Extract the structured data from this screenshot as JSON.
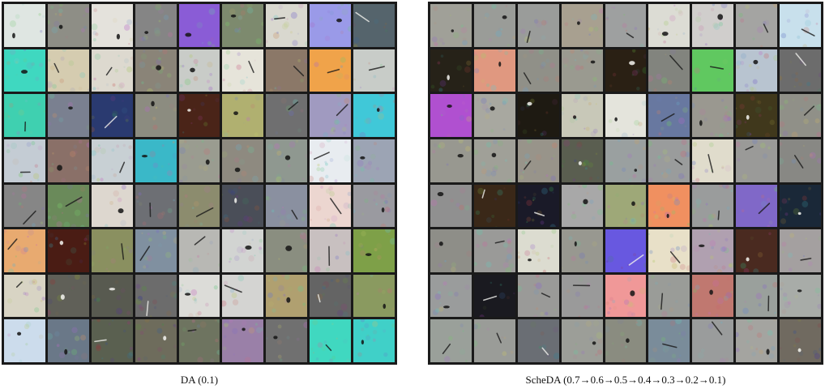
{
  "captions": {
    "left": "DA (0.1)",
    "right": "ScheDA (0.7→0.6→0.5→0.4→0.3→0.2→0.1)"
  },
  "grids": {
    "left": {
      "rows": 8,
      "cols": 9,
      "tiles": [
        [
          "#dfe6e2",
          "#8e8e86",
          "#e4e2dc",
          "#858585",
          "#8a5cd6",
          "#7d8a6e",
          "#d9d8cf",
          "#9a9ae8",
          "#55646c"
        ],
        [
          "#3fd8c0",
          "#d5ccb0",
          "#ddd9cf",
          "#8a8478",
          "#c9ccc8",
          "#e6e4da",
          "#8b7868",
          "#f0a34a",
          "#c8ccc8"
        ],
        [
          "#3fd0b0",
          "#7a8090",
          "#2a3a70",
          "#8c8c80",
          "#4a2418",
          "#b0b070",
          "#6f6f70",
          "#a09ac0",
          "#40c8d8"
        ],
        [
          "#c4ccd4",
          "#8a7068",
          "#c8d0d4",
          "#3ab8c8",
          "#9a9c90",
          "#8e8a80",
          "#8f9890",
          "#e8ecf0",
          "#9ca4b4"
        ],
        [
          "#868686",
          "#6a8a5a",
          "#ddd7cf",
          "#6d6f74",
          "#8c8c6e",
          "#4a4e58",
          "#8a90a0",
          "#ecd6d0",
          "#9a9aa0"
        ],
        [
          "#e8aa70",
          "#4a1c14",
          "#8a9060",
          "#8090a0",
          "#b8b8b4",
          "#d2d4d2",
          "#8a8e80",
          "#c8c0c0",
          "#7ea048"
        ],
        [
          "#d8d4c4",
          "#606058",
          "#585a50",
          "#6c6c6c",
          "#dcdcd8",
          "#d4d4d2",
          "#b0a070",
          "#646464",
          "#8a9a60"
        ],
        [
          "#ccdcec",
          "#6a7888",
          "#5a6050",
          "#6e6c5c",
          "#6e7460",
          "#9a80a8",
          "#707070",
          "#40d8c0",
          "#40d0c8"
        ]
      ]
    },
    "right": {
      "rows": 8,
      "cols": 9,
      "tiles": [
        [
          "#a0a098",
          "#9a9c98",
          "#9a9c9a",
          "#a8a090",
          "#9ea0a0",
          "#dcdcd4",
          "#d0cecc",
          "#a4a4a2",
          "#c8e0ec"
        ],
        [
          "#262218",
          "#e09880",
          "#909088",
          "#9a9a90",
          "#2a2014",
          "#82847e",
          "#60c860",
          "#b8c4d0",
          "#6c6c6c"
        ],
        [
          "#b050d0",
          "#a8a8a0",
          "#1e1a12",
          "#c8c8b8",
          "#e4e4dc",
          "#6878a0",
          "#9a9890",
          "#40381c",
          "#909088"
        ],
        [
          "#989890",
          "#a0a098",
          "#98948a",
          "#5a5e50",
          "#9aa0a0",
          "#9a9c9c",
          "#e0dccc",
          "#9a9a98",
          "#888884"
        ],
        [
          "#909090",
          "#3a2818",
          "#1a1a28",
          "#a8a8a8",
          "#9ea878",
          "#f09060",
          "#9a9c9c",
          "#8068c8",
          "#1a2838"
        ],
        [
          "#8e8e88",
          "#9a9a98",
          "#dcdcd0",
          "#989890",
          "#6858e0",
          "#e8e0c8",
          "#b0a0b0",
          "#4a2a20",
          "#a4a0a0"
        ],
        [
          "#9a9c9c",
          "#1a1a20",
          "#9a9a98",
          "#9a9a9a",
          "#f09898",
          "#9a9c98",
          "#c07870",
          "#9aa09c",
          "#a8aca8"
        ],
        [
          "#9aa09a",
          "#9a9c98",
          "#6a6e74",
          "#9c9e98",
          "#8a8c80",
          "#7a8c9a",
          "#9a9c9c",
          "#a4a4a0",
          "#706a60"
        ]
      ]
    }
  }
}
